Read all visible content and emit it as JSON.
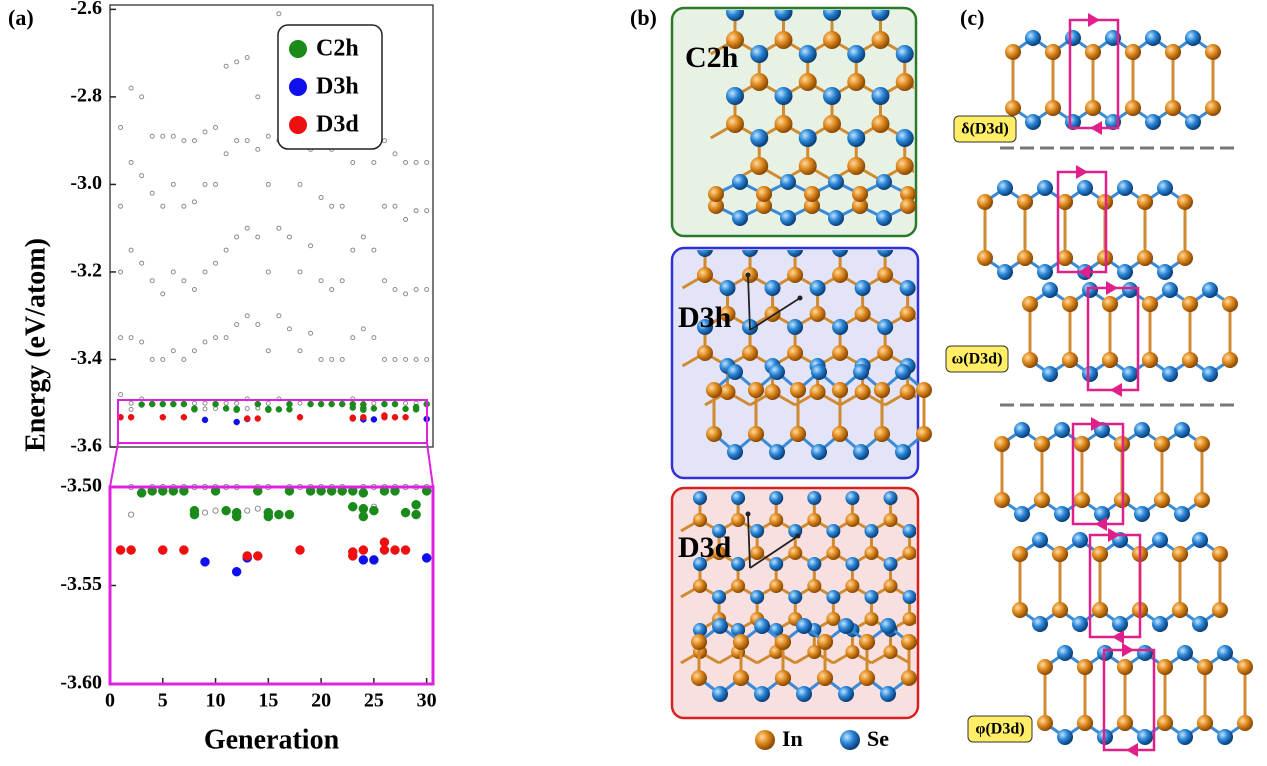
{
  "chart_data": [
    {
      "type": "scatter",
      "ylabel": "Energy (eV/atom)",
      "xlim": [
        0,
        30.6
      ],
      "ylim": [
        -3.6,
        -2.59
      ],
      "yticks": [
        -3.6,
        -3.4,
        -3.2,
        {
          "value": -3,
          "label": "-3.0"
        },
        -2.8,
        -2.6
      ],
      "legend": "upper right",
      "series": [
        {
          "color": "#8c8c8c",
          "x": [
            1,
            1,
            1,
            1,
            1,
            2,
            2,
            2,
            2,
            2,
            2,
            3,
            3,
            3,
            3,
            3,
            4,
            4,
            4,
            4,
            4,
            5,
            5,
            5,
            5,
            5,
            6,
            6,
            6,
            6,
            6,
            7,
            7,
            7,
            7,
            7,
            8,
            8,
            8,
            8,
            8,
            9,
            9,
            9,
            9,
            9,
            9,
            10,
            10,
            10,
            10,
            10,
            10,
            11,
            11,
            11,
            11,
            11,
            12,
            12,
            12,
            12,
            12,
            13,
            13,
            13,
            13,
            13,
            13,
            14,
            14,
            14,
            14,
            14,
            14,
            15,
            15,
            15,
            15,
            15,
            16,
            16,
            16,
            16,
            16,
            17,
            17,
            17,
            17,
            17,
            18,
            18,
            18,
            18,
            18,
            19,
            19,
            19,
            19,
            19,
            20,
            20,
            20,
            20,
            20,
            21,
            21,
            21,
            21,
            21,
            22,
            22,
            22,
            22,
            22,
            23,
            23,
            23,
            23,
            23,
            24,
            24,
            24,
            24,
            24,
            24,
            25,
            25,
            25,
            25,
            25,
            25,
            26,
            26,
            26,
            26,
            26,
            27,
            27,
            27,
            27,
            27,
            28,
            28,
            28,
            28,
            28,
            29,
            29,
            29,
            29,
            29,
            30,
            30,
            30,
            30,
            30
          ],
          "values": [
            -2.87,
            -3.05,
            -3.2,
            -3.35,
            -3.48,
            -2.78,
            -2.95,
            -3.15,
            -3.35,
            -3.5,
            -3.514,
            -2.8,
            -2.98,
            -3.18,
            -3.36,
            -3.49,
            -2.89,
            -3.02,
            -3.22,
            -3.4,
            -3.5,
            -2.89,
            -3.05,
            -3.25,
            -3.4,
            -3.5,
            -2.89,
            -3,
            -3.2,
            -3.38,
            -3.5,
            -2.9,
            -3.05,
            -3.22,
            -3.4,
            -3.5,
            -2.9,
            -3.04,
            -3.24,
            -3.38,
            -3.5,
            -2.88,
            -3,
            -3.2,
            -3.36,
            -3.5,
            -3.513,
            -2.87,
            -3,
            -3.18,
            -3.35,
            -3.5,
            -3.512,
            -2.73,
            -2.93,
            -3.15,
            -3.35,
            -3.5,
            -2.72,
            -2.9,
            -3.12,
            -3.32,
            -3.5,
            -2.71,
            -2.9,
            -3.1,
            -3.3,
            -3.49,
            -3.512,
            -2.8,
            -2.92,
            -3.12,
            -3.32,
            -3.5,
            -3.511,
            -2.89,
            -3,
            -3.2,
            -3.38,
            -3.5,
            -2.61,
            -2.9,
            -3.1,
            -3.3,
            -3.49,
            -2.76,
            -2.9,
            -3.12,
            -3.33,
            -3.5,
            -2.89,
            -3,
            -3.2,
            -3.38,
            -3.5,
            -2.8,
            -2.92,
            -3.14,
            -3.34,
            -3.5,
            -2.89,
            -3.03,
            -3.22,
            -3.4,
            -3.5,
            -2.92,
            -3.05,
            -3.24,
            -3.4,
            -3.5,
            -2.91,
            -3.05,
            -3.22,
            -3.4,
            -3.5,
            -2.8,
            -2.95,
            -3.15,
            -3.35,
            -3.49,
            -2.64,
            -2.9,
            -3.12,
            -3.33,
            -3.5,
            -3.513,
            -2.84,
            -2.95,
            -3.15,
            -3.35,
            -3.5,
            -3.51,
            -2.9,
            -3.05,
            -3.22,
            -3.4,
            -3.5,
            -2.93,
            -3.05,
            -3.24,
            -3.4,
            -3.5,
            -2.95,
            -3.08,
            -3.25,
            -3.4,
            -3.5,
            -2.95,
            -3.06,
            -3.24,
            -3.4,
            -3.5,
            -2.95,
            -3.06,
            -3.24,
            -3.4,
            -3.5
          ]
        },
        {
          "name": "C2h",
          "color": "#1a8a1a",
          "x": [
            3,
            4,
            5,
            6,
            7,
            8,
            8,
            10,
            11,
            12,
            12,
            14,
            15,
            15,
            16,
            17,
            17,
            19,
            20,
            21,
            22,
            23,
            23,
            24,
            24,
            24,
            25,
            26,
            27,
            28,
            29,
            29,
            30
          ],
          "values": [
            -3.503,
            -3.502,
            -3.502,
            -3.502,
            -3.502,
            -3.512,
            -3.514,
            -3.502,
            -3.512,
            -3.513,
            -3.515,
            -3.502,
            -3.513,
            -3.515,
            -3.514,
            -3.514,
            -3.502,
            -3.502,
            -3.502,
            -3.502,
            -3.502,
            -3.502,
            -3.51,
            -3.503,
            -3.511,
            -3.515,
            -3.512,
            -3.502,
            -3.502,
            -3.513,
            -3.509,
            -3.514,
            -3.502
          ]
        },
        {
          "name": "D3h",
          "color": "#1010ee",
          "x": [
            9,
            12,
            13,
            24,
            25,
            30
          ],
          "values": [
            -3.538,
            -3.543,
            -3.536,
            -3.537,
            -3.537,
            -3.536
          ]
        },
        {
          "name": "D3d",
          "color": "#ee1010",
          "x": [
            1,
            2,
            5,
            7,
            13,
            14,
            18,
            23,
            23,
            24,
            26,
            26,
            27,
            28
          ],
          "values": [
            -3.532,
            -3.532,
            -3.532,
            -3.532,
            -3.535,
            -3.535,
            -3.532,
            -3.533,
            -3.535,
            -3.532,
            -3.528,
            -3.532,
            -3.532,
            -3.532
          ]
        }
      ]
    },
    {
      "type": "scatter",
      "xlabel": "Generation",
      "xlim": [
        0,
        30.6
      ],
      "ylim": [
        -3.6,
        -3.5
      ],
      "xticks": [
        0,
        5,
        10,
        15,
        20,
        25,
        30
      ],
      "yticks": [
        {
          "value": -3.6,
          "label": "-3.60"
        },
        -3.55,
        {
          "value": -3.5,
          "label": "-3.50"
        }
      ]
    }
  ],
  "panel_labels": [
    "(a)",
    "(b)",
    "(c)"
  ],
  "structures": [
    "C2h",
    "D3h",
    "D3d"
  ],
  "species": [
    "In",
    "Se"
  ],
  "stackings": [
    "δ(D3d)",
    "ω(D3d)",
    "φ(D3d)"
  ]
}
